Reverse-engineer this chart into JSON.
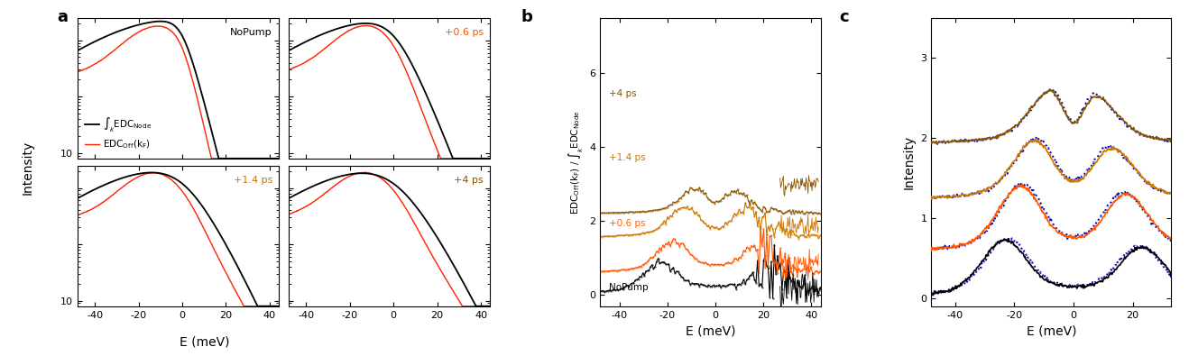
{
  "panel_a_label_colors": [
    "black",
    "#FF5500",
    "#CC7700",
    "#8B5500"
  ],
  "panel_b_colors": [
    "black",
    "#FF5500",
    "#CC7700",
    "#8B5500"
  ],
  "panel_c_colors": [
    "black",
    "#FF5500",
    "#CC7700",
    "#8B5500"
  ],
  "xlabel": "E (meV)",
  "ylabel_a": "Intensity",
  "ylabel_b": "EDC$_{\\mathrm{Off}}$($k_F$) / $\\int_k$EDC$_{\\mathrm{Node}}$",
  "ylabel_c": "Intensity",
  "fig_label_a": "a",
  "fig_label_b": "b",
  "fig_label_c": "c",
  "subplot_labels": [
    "NoPump",
    "+0.6 ps",
    "+1.4 ps",
    "+4 ps"
  ],
  "b_labels": [
    "NoPump",
    "+0.6 ps",
    "+1.4 ps",
    "+4 ps"
  ],
  "b_label_colors": [
    "black",
    "#FF6600",
    "#CC7700",
    "#8B5500"
  ]
}
